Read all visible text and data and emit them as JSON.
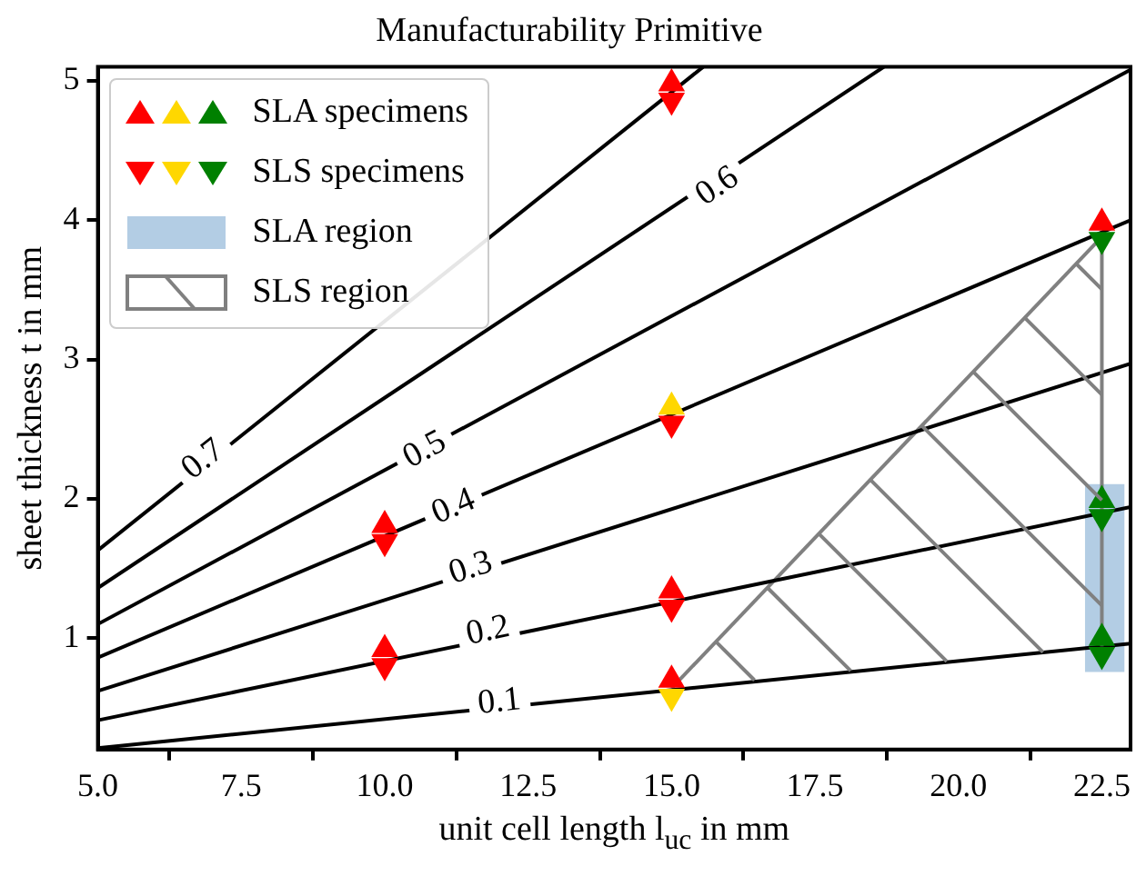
{
  "chart_data": {
    "type": "line",
    "title": "Manufacturability Primitive",
    "xlabel": "unit cell length l$_{uc}$ in mm",
    "ylabel": "sheet thickness t in mm",
    "xlim": [
      5,
      23
    ],
    "ylim": [
      0.2,
      5.1
    ],
    "xticks": [
      {
        "value": 5,
        "label": "5.0"
      },
      {
        "value": 7.5,
        "label": "7.5"
      },
      {
        "value": 10,
        "label": "10.0"
      },
      {
        "value": 12.5,
        "label": "12.5"
      },
      {
        "value": 15,
        "label": "15.0"
      },
      {
        "value": 17.5,
        "label": "17.5"
      },
      {
        "value": 20,
        "label": "20.0"
      },
      {
        "value": 22.5,
        "label": "22.5"
      }
    ],
    "yticks": [
      1,
      2,
      3,
      4,
      5
    ],
    "grid": false,
    "legend": "top left",
    "series": [
      {
        "type": "scatter",
        "name": "SLA specimens",
        "marker": "triangle",
        "x": [
          10,
          10,
          15,
          15,
          15,
          15,
          22.5,
          22.5,
          22.5
        ],
        "values": [
          0.92,
          1.81,
          0.7,
          1.34,
          2.66,
          4.98,
          1.0,
          1.99,
          3.98
        ],
        "colors": [
          "#ff0000",
          "#ff0000",
          "#ff0000",
          "#ff0000",
          "#ffd700",
          "#ff0000",
          "#008000",
          "#008000",
          "#ff0000"
        ]
      },
      {
        "type": "scatter",
        "name": "SLS specimens",
        "marker": "triangle-down",
        "x": [
          10,
          10,
          15,
          15,
          15,
          15,
          22.5,
          22.5,
          22.5
        ],
        "values": [
          0.8,
          1.69,
          0.58,
          1.22,
          2.54,
          4.86,
          0.88,
          1.87,
          3.86
        ],
        "colors": [
          "#ff0000",
          "#ff0000",
          "#ffd700",
          "#ff0000",
          "#ff0000",
          "#ff0000",
          "#008000",
          "#008000",
          "#008000"
        ]
      },
      {
        "type": "bar",
        "name": "SLA region",
        "color": "#b3cde4",
        "x": [
          22.55
        ],
        "base": [
          0.76
        ],
        "values": [
          1.34
        ]
      },
      {
        "type": "line",
        "name": "SLS region",
        "color": "#808080",
        "x": [
          15,
          22.5
        ],
        "values": [
          0.64,
          3.88
        ]
      },
      {
        "type": "line",
        "color": "#808080",
        "x": [
          22.5,
          22.5
        ],
        "values": [
          0.94,
          3.88
        ]
      },
      {
        "color": "#000000",
        "x": [
          5,
          15.55
        ],
        "values": [
          1.63,
          5.1
        ]
      },
      {
        "color": "#000000",
        "x": [
          5,
          18.7
        ],
        "values": [
          1.36,
          5.1
        ]
      },
      {
        "color": "#000000",
        "x": [
          5,
          23
        ],
        "values": [
          1.1,
          5.08
        ]
      },
      {
        "color": "#000000",
        "x": [
          5,
          23
        ],
        "values": [
          0.86,
          4.0
        ]
      },
      {
        "color": "#000000",
        "x": [
          5,
          23
        ],
        "values": [
          0.62,
          2.97
        ]
      },
      {
        "color": "#000000",
        "x": [
          5,
          23
        ],
        "values": [
          0.41,
          1.94
        ]
      },
      {
        "color": "#000000",
        "x": [
          5,
          23
        ],
        "values": [
          0.21,
          0.96
        ]
      }
    ],
    "annotations": [
      {
        "text": "0.7",
        "x": 6.84,
        "y": 2.28
      },
      {
        "text": "0.6",
        "x": 15.8,
        "y": 4.24
      },
      {
        "text": "0.5",
        "x": 10.7,
        "y": 2.35
      },
      {
        "text": "0.4",
        "x": 11.2,
        "y": 1.94
      },
      {
        "text": "0.3",
        "x": 11.5,
        "y": 1.5
      },
      {
        "text": "0.2",
        "x": 11.8,
        "y": 1.05
      },
      {
        "text": "0.1",
        "x": 12.0,
        "y": 0.54
      }
    ]
  }
}
